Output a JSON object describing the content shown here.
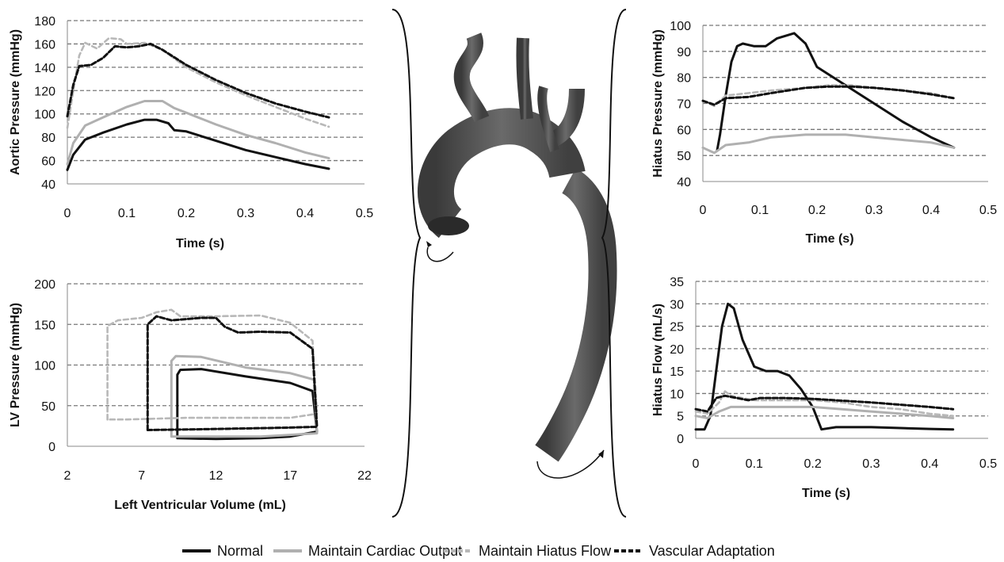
{
  "legend": [
    {
      "label": "Normal",
      "color": "#111111",
      "dash": "solid"
    },
    {
      "label": "Maintain Cardiac Output",
      "color": "#b0b0b0",
      "dash": "solid"
    },
    {
      "label": "Maintain Hiatus Flow",
      "color": "#b8b8b8",
      "dash": "dashed"
    },
    {
      "label": "Vascular Adaptation",
      "color": "#111111",
      "dash": "dashed"
    }
  ],
  "chart_data": [
    {
      "id": "aortic",
      "type": "line",
      "xlabel": "Time (s)",
      "ylabel": "Aortic Pressure (mmHg)",
      "xlim": [
        0,
        0.5
      ],
      "ylim": [
        40,
        180
      ],
      "xticks": [
        "0",
        "0.1",
        "0.2",
        "0.3",
        "0.4",
        "0.5"
      ],
      "yticks": [
        "40",
        "60",
        "80",
        "100",
        "120",
        "140",
        "160",
        "180"
      ],
      "grid": true,
      "series": [
        {
          "name": "Normal",
          "points": [
            [
              0,
              52
            ],
            [
              0.01,
              65
            ],
            [
              0.03,
              78
            ],
            [
              0.06,
              84
            ],
            [
              0.1,
              91
            ],
            [
              0.13,
              95
            ],
            [
              0.15,
              95
            ],
            [
              0.17,
              92
            ],
            [
              0.18,
              86
            ],
            [
              0.2,
              85
            ],
            [
              0.25,
              77
            ],
            [
              0.3,
              69
            ],
            [
              0.35,
              63
            ],
            [
              0.4,
              57
            ],
            [
              0.44,
              53
            ]
          ]
        },
        {
          "name": "Maintain Cardiac Output",
          "points": [
            [
              0,
              57
            ],
            [
              0.01,
              75
            ],
            [
              0.03,
              90
            ],
            [
              0.06,
              97
            ],
            [
              0.1,
              106
            ],
            [
              0.13,
              111
            ],
            [
              0.16,
              111
            ],
            [
              0.18,
              105
            ],
            [
              0.2,
              101
            ],
            [
              0.25,
              91
            ],
            [
              0.3,
              82
            ],
            [
              0.35,
              75
            ],
            [
              0.4,
              67
            ],
            [
              0.44,
              62
            ]
          ]
        },
        {
          "name": "Maintain Hiatus Flow",
          "points": [
            [
              0,
              88
            ],
            [
              0.01,
              120
            ],
            [
              0.02,
              150
            ],
            [
              0.03,
              161
            ],
            [
              0.05,
              156
            ],
            [
              0.07,
              165
            ],
            [
              0.09,
              164
            ],
            [
              0.1,
              160
            ],
            [
              0.13,
              161
            ],
            [
              0.16,
              155
            ],
            [
              0.2,
              140
            ],
            [
              0.25,
              127
            ],
            [
              0.3,
              116
            ],
            [
              0.35,
              106
            ],
            [
              0.4,
              96
            ],
            [
              0.44,
              89
            ]
          ]
        },
        {
          "name": "Vascular Adaptation",
          "points": [
            [
              0,
              98
            ],
            [
              0.01,
              125
            ],
            [
              0.02,
              141
            ],
            [
              0.04,
              142
            ],
            [
              0.06,
              148
            ],
            [
              0.08,
              158
            ],
            [
              0.1,
              157
            ],
            [
              0.12,
              158
            ],
            [
              0.14,
              160
            ],
            [
              0.16,
              155
            ],
            [
              0.2,
              142
            ],
            [
              0.25,
              129
            ],
            [
              0.3,
              118
            ],
            [
              0.35,
              109
            ],
            [
              0.4,
              102
            ],
            [
              0.44,
              97
            ]
          ]
        }
      ]
    },
    {
      "id": "lv",
      "type": "line",
      "xlabel": "Left Ventricular Volume (mL)",
      "ylabel": "LV Pressure (mmHg)",
      "xlim": [
        2,
        22
      ],
      "ylim": [
        0,
        200
      ],
      "xticks": [
        "2",
        "7",
        "12",
        "17",
        "22"
      ],
      "yticks": [
        "0",
        "50",
        "100",
        "150",
        "200"
      ],
      "grid": true,
      "series": [
        {
          "name": "Normal",
          "points": [
            [
              9.4,
              10
            ],
            [
              9.4,
              88
            ],
            [
              9.6,
              94
            ],
            [
              11,
              95
            ],
            [
              14,
              86
            ],
            [
              17,
              78
            ],
            [
              18.5,
              68
            ],
            [
              18.8,
              18
            ],
            [
              17,
              12
            ],
            [
              15,
              10
            ],
            [
              12,
              9
            ],
            [
              9.4,
              10
            ]
          ]
        },
        {
          "name": "Maintain Cardiac Output",
          "points": [
            [
              9.0,
              12
            ],
            [
              9.0,
              105
            ],
            [
              9.3,
              111
            ],
            [
              11,
              110
            ],
            [
              14,
              97
            ],
            [
              17,
              90
            ],
            [
              18.6,
              82
            ],
            [
              18.8,
              16
            ],
            [
              17,
              14
            ],
            [
              15,
              12
            ],
            [
              12,
              12
            ],
            [
              9.0,
              12
            ]
          ]
        },
        {
          "name": "Maintain Hiatus Flow",
          "points": [
            [
              4.7,
              33
            ],
            [
              4.7,
              148
            ],
            [
              5.4,
              155
            ],
            [
              7,
              158
            ],
            [
              8,
              165
            ],
            [
              9,
              168
            ],
            [
              9.6,
              160
            ],
            [
              12,
              160
            ],
            [
              15,
              161
            ],
            [
              17,
              152
            ],
            [
              18.5,
              130
            ],
            [
              18.8,
              40
            ],
            [
              17,
              35
            ],
            [
              14,
              35
            ],
            [
              10,
              35
            ],
            [
              6,
              33
            ],
            [
              4.7,
              33
            ]
          ]
        },
        {
          "name": "Vascular Adaptation",
          "points": [
            [
              7.4,
              20
            ],
            [
              7.4,
              150
            ],
            [
              8,
              160
            ],
            [
              9,
              155
            ],
            [
              11,
              158
            ],
            [
              12,
              158
            ],
            [
              12.6,
              147
            ],
            [
              13.5,
              140
            ],
            [
              15,
              141
            ],
            [
              17,
              140
            ],
            [
              18.5,
              120
            ],
            [
              18.8,
              24
            ],
            [
              17,
              23
            ],
            [
              14,
              22
            ],
            [
              11,
              21
            ],
            [
              7.4,
              20
            ]
          ]
        }
      ]
    },
    {
      "id": "hiatus-pressure",
      "type": "line",
      "xlabel": "Time (s)",
      "ylabel": "Hiatus Pressure (mmHg)",
      "xlim": [
        0,
        0.5
      ],
      "ylim": [
        40,
        100
      ],
      "xticks": [
        "0",
        "0.1",
        "0.2",
        "0.3",
        "0.4",
        "0.5"
      ],
      "yticks": [
        "40",
        "50",
        "60",
        "70",
        "80",
        "90",
        "100"
      ],
      "grid": true,
      "series": [
        {
          "name": "Normal",
          "points": [
            [
              0.025,
              52
            ],
            [
              0.03,
              58
            ],
            [
              0.04,
              73
            ],
            [
              0.05,
              86
            ],
            [
              0.06,
              92
            ],
            [
              0.07,
              93
            ],
            [
              0.09,
              92
            ],
            [
              0.11,
              92
            ],
            [
              0.13,
              95
            ],
            [
              0.16,
              97
            ],
            [
              0.18,
              93
            ],
            [
              0.2,
              84
            ],
            [
              0.25,
              77
            ],
            [
              0.3,
              70
            ],
            [
              0.35,
              63
            ],
            [
              0.4,
              57
            ],
            [
              0.44,
              53
            ]
          ]
        },
        {
          "name": "Maintain Cardiac Output",
          "points": [
            [
              0,
              53
            ],
            [
              0.02,
              51
            ],
            [
              0.04,
              54
            ],
            [
              0.08,
              55
            ],
            [
              0.12,
              57
            ],
            [
              0.18,
              58
            ],
            [
              0.25,
              58
            ],
            [
              0.3,
              57
            ],
            [
              0.35,
              56
            ],
            [
              0.4,
              55
            ],
            [
              0.44,
              53
            ]
          ]
        },
        {
          "name": "Maintain Hiatus Flow",
          "points": [
            [
              0,
              71
            ],
            [
              0.02,
              69
            ],
            [
              0.04,
              73
            ],
            [
              0.08,
              74
            ],
            [
              0.12,
              75
            ],
            [
              0.18,
              76
            ],
            [
              0.22,
              77
            ],
            [
              0.26,
              77
            ],
            [
              0.3,
              76
            ],
            [
              0.35,
              75
            ],
            [
              0.4,
              74
            ],
            [
              0.44,
              72
            ]
          ]
        },
        {
          "name": "Vascular Adaptation",
          "points": [
            [
              0,
              71
            ],
            [
              0.02,
              69.5
            ],
            [
              0.04,
              72
            ],
            [
              0.08,
              72.5
            ],
            [
              0.12,
              74
            ],
            [
              0.18,
              76
            ],
            [
              0.22,
              76.5
            ],
            [
              0.26,
              76.5
            ],
            [
              0.3,
              76
            ],
            [
              0.35,
              75
            ],
            [
              0.4,
              73.5
            ],
            [
              0.44,
              72
            ]
          ]
        }
      ]
    },
    {
      "id": "hiatus-flow",
      "type": "line",
      "xlabel": "Time (s)",
      "ylabel": "Hiatus Flow (mL/s)",
      "xlim": [
        0,
        0.5
      ],
      "ylim": [
        0,
        35
      ],
      "xticks": [
        "0",
        "0.1",
        "0.2",
        "0.3",
        "0.4",
        "0.5"
      ],
      "yticks": [
        "0",
        "5",
        "10",
        "15",
        "20",
        "25",
        "30",
        "35"
      ],
      "grid": true,
      "series": [
        {
          "name": "Normal",
          "points": [
            [
              0,
              2
            ],
            [
              0.015,
              2
            ],
            [
              0.025,
              5
            ],
            [
              0.035,
              15
            ],
            [
              0.045,
              25
            ],
            [
              0.055,
              30
            ],
            [
              0.065,
              29
            ],
            [
              0.08,
              22
            ],
            [
              0.1,
              16
            ],
            [
              0.12,
              15
            ],
            [
              0.14,
              15
            ],
            [
              0.16,
              14
            ],
            [
              0.18,
              11
            ],
            [
              0.2,
              7
            ],
            [
              0.215,
              2
            ],
            [
              0.24,
              2.5
            ],
            [
              0.3,
              2.5
            ],
            [
              0.35,
              2.3
            ],
            [
              0.4,
              2.1
            ],
            [
              0.44,
              2
            ]
          ]
        },
        {
          "name": "Maintain Cardiac Output",
          "points": [
            [
              0,
              5
            ],
            [
              0.02,
              4.5
            ],
            [
              0.04,
              6
            ],
            [
              0.06,
              7
            ],
            [
              0.1,
              7
            ],
            [
              0.15,
              7
            ],
            [
              0.2,
              7
            ],
            [
              0.25,
              6.5
            ],
            [
              0.3,
              6
            ],
            [
              0.35,
              5.5
            ],
            [
              0.4,
              5
            ],
            [
              0.44,
              4.5
            ]
          ]
        },
        {
          "name": "Maintain Hiatus Flow",
          "points": [
            [
              0,
              6
            ],
            [
              0.02,
              5.5
            ],
            [
              0.04,
              8
            ],
            [
              0.05,
              10.5
            ],
            [
              0.06,
              9.5
            ],
            [
              0.08,
              9
            ],
            [
              0.1,
              8.5
            ],
            [
              0.15,
              8.5
            ],
            [
              0.2,
              8.5
            ],
            [
              0.25,
              8
            ],
            [
              0.3,
              7
            ],
            [
              0.35,
              6.5
            ],
            [
              0.4,
              5.5
            ],
            [
              0.44,
              5
            ]
          ]
        },
        {
          "name": "Vascular Adaptation",
          "points": [
            [
              0,
              6.5
            ],
            [
              0.02,
              6
            ],
            [
              0.035,
              9
            ],
            [
              0.05,
              9.5
            ],
            [
              0.07,
              9
            ],
            [
              0.09,
              8.5
            ],
            [
              0.11,
              9
            ],
            [
              0.15,
              9
            ],
            [
              0.2,
              8.8
            ],
            [
              0.25,
              8.4
            ],
            [
              0.3,
              8
            ],
            [
              0.35,
              7.5
            ],
            [
              0.4,
              7
            ],
            [
              0.44,
              6.5
            ]
          ]
        }
      ]
    }
  ]
}
